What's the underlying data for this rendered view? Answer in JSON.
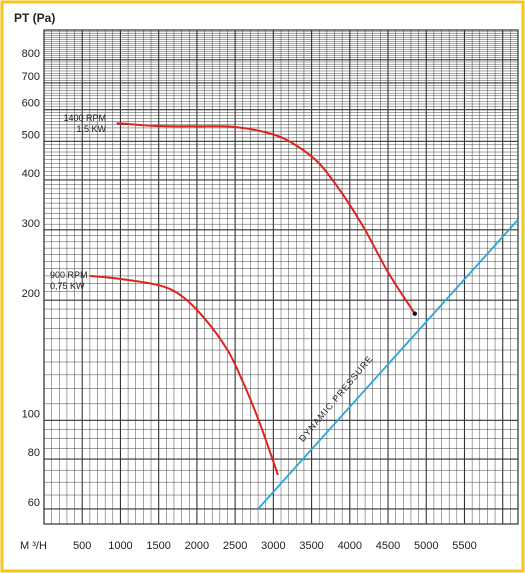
{
  "chart_data": {
    "type": "line",
    "ylabel": "PT (Pa)",
    "xlabel": "M ³/H",
    "x_ticks": [
      "500",
      "1000",
      "1500",
      "2000",
      "2500",
      "3000",
      "3500",
      "4000",
      "4500",
      "5000",
      "5500"
    ],
    "y_ticks": [
      "60",
      "80",
      "100",
      "200",
      "300",
      "400",
      "500",
      "600",
      "700",
      "800"
    ],
    "xlim": [
      0,
      6200
    ],
    "ylim": [
      55,
      950
    ],
    "y_scale": "log",
    "grid": true,
    "colors": {
      "frame": "#f5c518",
      "curve": "#e0231c",
      "dynamic": "#29a8d9",
      "grid": "#333333"
    },
    "series": [
      {
        "name_lines": [
          "1400 RPM",
          "1,5 KW"
        ],
        "x": [
          950,
          1500,
          2000,
          2500,
          3000,
          3300,
          3600,
          3900,
          4200,
          4500,
          4850
        ],
        "y": [
          555,
          546,
          545,
          543,
          520,
          488,
          440,
          370,
          300,
          235,
          185
        ]
      },
      {
        "name_lines": [
          "900 RPM",
          "0,75 KW"
        ],
        "x": [
          600,
          1000,
          1500,
          1800,
          2100,
          2400,
          2600,
          2800,
          2950,
          3060
        ],
        "y": [
          230,
          226,
          218,
          205,
          180,
          150,
          125,
          101,
          84,
          73
        ]
      },
      {
        "name": "DYNAMIC PRESSURE",
        "x": [
          2800,
          3500,
          4200,
          5000,
          6200
        ],
        "y": [
          60,
          90,
          130,
          192,
          318
        ]
      }
    ],
    "annotations": [
      {
        "text": "DYNAMIC PRESSURE",
        "series": 2
      }
    ]
  }
}
